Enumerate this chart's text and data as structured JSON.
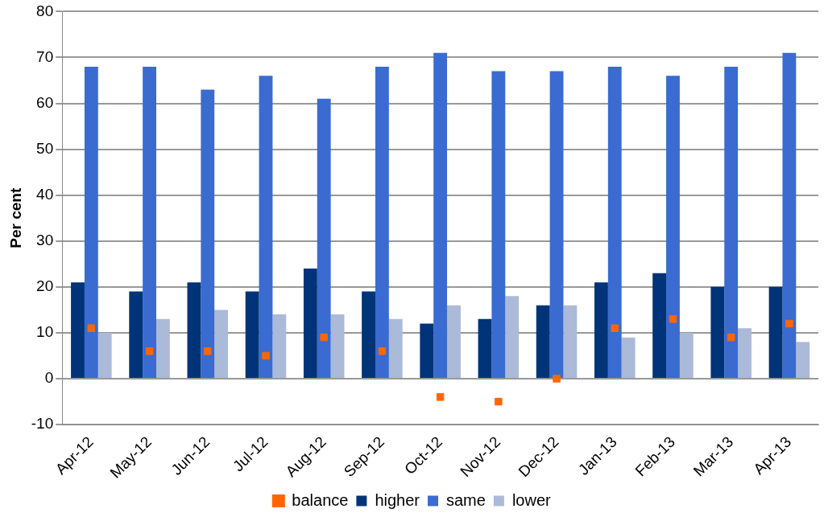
{
  "chart_data": {
    "type": "bar",
    "ylabel": "Per cent",
    "categories": [
      "Apr-12",
      "May-12",
      "Jun-12",
      "Jul-12",
      "Aug-12",
      "Sep-12",
      "Oct-12",
      "Nov-12",
      "Dec-12",
      "Jan-13",
      "Feb-13",
      "Mar-13",
      "Apr-13"
    ],
    "series": [
      {
        "name": "higher",
        "color": "#003378",
        "values": [
          21,
          19,
          21,
          19,
          24,
          19,
          12,
          13,
          16,
          21,
          23,
          20,
          20
        ]
      },
      {
        "name": "same",
        "color": "#3a6bd0",
        "values": [
          68,
          68,
          63,
          66,
          61,
          68,
          71,
          67,
          67,
          68,
          66,
          68,
          71
        ]
      },
      {
        "name": "lower",
        "color": "#abbad8",
        "values": [
          10,
          13,
          15,
          14,
          14,
          13,
          16,
          18,
          16,
          9,
          10,
          11,
          8
        ]
      },
      {
        "name": "balance",
        "color": "#ff6600",
        "type": "scatter",
        "marker": "square",
        "values": [
          11,
          6,
          6,
          5,
          9,
          6,
          -4,
          -5,
          0,
          11,
          13,
          9,
          12
        ]
      }
    ],
    "ylim": [
      -10,
      80
    ],
    "yticks": [
      -10,
      0,
      10,
      20,
      30,
      40,
      50,
      60,
      70,
      80
    ],
    "grid": "y",
    "legend": "bottom"
  }
}
